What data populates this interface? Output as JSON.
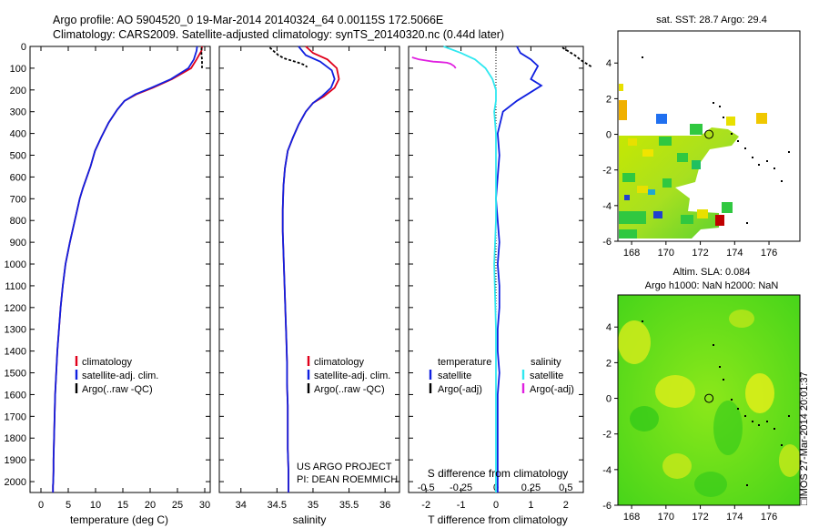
{
  "header": {
    "line1": "Argo profile: AO 5904520_0 19-Mar-2014 20140324_64 0.00115S 172.5066E",
    "line2": "Climatology: CARS2009. Satellite-adjusted climatology: synTS_20140320.nc (0.44d later)"
  },
  "credits": {
    "project": "US ARGO PROJECT",
    "pi": "PI: DEAN ROEMMICH"
  },
  "stamp": "□IMOS 27-Mar-2014 20:01:37",
  "colors": {
    "red": "#e0001b",
    "blue": "#1020e0",
    "black": "#000000",
    "cyan": "#30e8f0",
    "magenta": "#e020e0"
  },
  "chart_data": [
    {
      "type": "line",
      "xlabel": "temperature (deg C)",
      "ylabel": "",
      "xlim": [
        -2,
        31
      ],
      "ylim": [
        2050,
        0
      ],
      "x_ticks": [
        "0",
        "5",
        "10",
        "15",
        "20",
        "25",
        "30"
      ],
      "y_ticks": [
        "0",
        "100",
        "200",
        "300",
        "400",
        "500",
        "600",
        "700",
        "800",
        "900",
        "1000",
        "1100",
        "1200",
        "1300",
        "1400",
        "1500",
        "1600",
        "1700",
        "1800",
        "1900",
        "2000"
      ],
      "legend": [
        "climatology",
        "satellite-adj. clim.",
        "Argo(..raw -QC)"
      ],
      "legend_placement": "lower-center",
      "series": [
        {
          "name": "climatology",
          "color": "red",
          "x": [
            29.5,
            29.4,
            28.5,
            27.5,
            24,
            20.5,
            17.5,
            15.3,
            14,
            12.4,
            11,
            9.9,
            9.1,
            8.4,
            7.7,
            7.1,
            6.2,
            5.3,
            4.5,
            4.0,
            3.6,
            3.3,
            3.0,
            2.8,
            2.6,
            2.5,
            2.4,
            2.3,
            2.3,
            2.25,
            2.2,
            2.2,
            2.2
          ],
          "y": [
            0,
            20,
            60,
            100,
            150,
            190,
            220,
            250,
            290,
            350,
            420,
            480,
            550,
            600,
            650,
            700,
            800,
            900,
            1000,
            1100,
            1200,
            1300,
            1400,
            1500,
            1600,
            1700,
            1800,
            1900,
            1950,
            2000,
            2020,
            2035,
            2050
          ]
        },
        {
          "name": "satellite-adj. clim.",
          "color": "blue",
          "x": [
            28.6,
            28.5,
            28,
            27,
            23.8,
            20.2,
            17.3,
            15.3,
            14,
            12.4,
            11,
            9.9,
            9.1,
            8.4,
            7.7,
            7.1,
            6.2,
            5.3,
            4.5,
            4.0,
            3.6,
            3.3,
            3.0,
            2.8,
            2.6,
            2.5,
            2.4,
            2.3,
            2.3,
            2.25,
            2.2,
            2.2,
            2.2
          ],
          "y": [
            0,
            20,
            60,
            100,
            150,
            190,
            220,
            250,
            290,
            350,
            420,
            480,
            550,
            600,
            650,
            700,
            800,
            900,
            1000,
            1100,
            1200,
            1300,
            1400,
            1500,
            1600,
            1700,
            1800,
            1900,
            1950,
            2000,
            2020,
            2035,
            2050
          ]
        },
        {
          "name": "Argo(..raw -QC)",
          "color": "black",
          "x": [
            29.4,
            29.4,
            29.4,
            29.5,
            29.5,
            29.5,
            29.5
          ],
          "y": [
            5,
            20,
            40,
            60,
            75,
            90,
            100
          ]
        }
      ]
    },
    {
      "type": "line",
      "xlabel": "salinity",
      "xlim": [
        33.7,
        36.2
      ],
      "ylim": [
        2050,
        0
      ],
      "x_ticks": [
        "34",
        "34.5",
        "35",
        "35.5",
        "36"
      ],
      "legend": [
        "climatology",
        "satellite-adj. clim.",
        "Argo(..raw -QC)"
      ],
      "legend_placement": "lower-right",
      "series": [
        {
          "name": "climatology",
          "color": "red",
          "x": [
            34.9,
            35.0,
            35.2,
            35.33,
            35.36,
            35.3,
            35.15,
            35.0,
            34.9,
            34.8,
            34.72,
            34.65,
            34.61,
            34.59,
            34.58,
            34.58,
            34.59,
            34.6,
            34.61,
            34.62,
            34.63,
            34.64,
            34.64,
            34.65,
            34.65,
            34.65,
            34.66,
            34.66,
            34.66,
            34.66
          ],
          "y": [
            0,
            30,
            60,
            100,
            150,
            190,
            230,
            260,
            300,
            360,
            420,
            480,
            560,
            640,
            750,
            850,
            950,
            1050,
            1150,
            1250,
            1350,
            1450,
            1550,
            1650,
            1750,
            1850,
            1950,
            2000,
            2030,
            2050
          ]
        },
        {
          "name": "satellite-adj. clim.",
          "color": "blue",
          "x": [
            34.8,
            34.9,
            35.1,
            35.26,
            35.3,
            35.25,
            35.12,
            35.0,
            34.9,
            34.8,
            34.72,
            34.65,
            34.61,
            34.59,
            34.58,
            34.58,
            34.59,
            34.6,
            34.61,
            34.62,
            34.63,
            34.64,
            34.64,
            34.65,
            34.65,
            34.65,
            34.66,
            34.66,
            34.66,
            34.66
          ],
          "y": [
            0,
            40,
            70,
            110,
            150,
            190,
            230,
            260,
            300,
            360,
            420,
            480,
            560,
            640,
            750,
            850,
            950,
            1050,
            1150,
            1250,
            1350,
            1450,
            1550,
            1650,
            1750,
            1850,
            1950,
            2000,
            2030,
            2050
          ]
        },
        {
          "name": "Argo(..raw -QC)",
          "color": "black",
          "x": [
            34.4,
            34.45,
            34.52,
            34.6,
            34.7,
            34.8,
            34.88,
            34.92
          ],
          "y": [
            5,
            20,
            40,
            55,
            65,
            75,
            85,
            95
          ]
        }
      ]
    },
    {
      "type": "line",
      "xlabel": "T difference from climatology",
      "top_label": "S difference from climatology",
      "xlim": [
        -2.5,
        2.5
      ],
      "ylim": [
        2050,
        0
      ],
      "x_ticks": [
        "-2",
        "-1",
        "0",
        "1",
        "2"
      ],
      "top_ticks": [
        "-0.5",
        "-0.25",
        "0",
        "0.25",
        "0.5"
      ],
      "legend_headers": [
        "temperature",
        "salinity"
      ],
      "legend": [
        "satellite",
        "Argo(-adj)",
        "satellite",
        "Argo(-adj)"
      ],
      "legend_placement": "lower-center",
      "series": [
        {
          "name": "satellite",
          "group": "temperature",
          "color": "blue",
          "x": [
            0.6,
            0.7,
            1.0,
            1.2,
            1.1,
            1.0,
            1.3,
            1.0,
            0.6,
            0.2,
            0.05,
            0.1,
            0.05,
            0.0,
            0.05,
            0.1,
            0.05,
            0.1,
            0.1,
            0.05,
            0.05,
            0.1,
            0.05,
            0.05,
            0.05,
            0.05
          ],
          "y": [
            0,
            30,
            60,
            90,
            120,
            150,
            180,
            210,
            250,
            300,
            400,
            500,
            600,
            700,
            800,
            900,
            1000,
            1100,
            1200,
            1300,
            1400,
            1500,
            1600,
            1800,
            2000,
            2050
          ]
        },
        {
          "name": "Argo(-adj)",
          "group": "temperature",
          "color": "black",
          "x": [
            1.9,
            2.0,
            2.15,
            2.3,
            2.4,
            2.55,
            2.65,
            2.75
          ],
          "y": [
            5,
            15,
            30,
            45,
            60,
            75,
            85,
            95
          ]
        },
        {
          "name": "satellite",
          "group": "salinity",
          "color": "cyan",
          "x": [
            -1.5,
            -1.0,
            -0.6,
            -0.3,
            -0.1,
            0.0,
            0.0,
            -0.05,
            0.0,
            0.0,
            0.0,
            -0.05,
            0.0,
            0.0,
            0.0,
            0.0
          ],
          "y": [
            0,
            30,
            60,
            100,
            150,
            200,
            250,
            300,
            400,
            600,
            800,
            1000,
            1300,
            1600,
            1900,
            2050
          ]
        },
        {
          "name": "Argo(-adj)",
          "group": "salinity",
          "color": "magenta",
          "x": [
            -2.4,
            -2.2,
            -2.0,
            -1.8,
            -1.6,
            -1.4,
            -1.3,
            -1.2,
            -1.15
          ],
          "y": [
            50,
            60,
            65,
            70,
            72,
            75,
            80,
            90,
            100
          ]
        }
      ]
    },
    {
      "type": "heatmap",
      "title": "sat. SST: 28.7 Argo: 29.4",
      "xlim": [
        167.2,
        177.8
      ],
      "ylim": [
        -6,
        5.8
      ],
      "x_ticks": [
        "168",
        "170",
        "172",
        "174",
        "176"
      ],
      "y_ticks": [
        "4",
        "2",
        "0",
        "-2",
        "-4",
        "-6"
      ],
      "argo_position": [
        172.5066,
        -0.00115
      ]
    },
    {
      "type": "heatmap",
      "title_line1": "Altim. SLA: 0.084",
      "title_line2": "Argo h1000: NaN h2000: NaN",
      "xlim": [
        167.2,
        177.8
      ],
      "ylim": [
        -6,
        5.8
      ],
      "x_ticks": [
        "168",
        "170",
        "172",
        "174",
        "176"
      ],
      "y_ticks": [
        "4",
        "2",
        "0",
        "-2",
        "-4",
        "-6"
      ],
      "argo_position": [
        172.5066,
        -0.00115
      ]
    }
  ]
}
